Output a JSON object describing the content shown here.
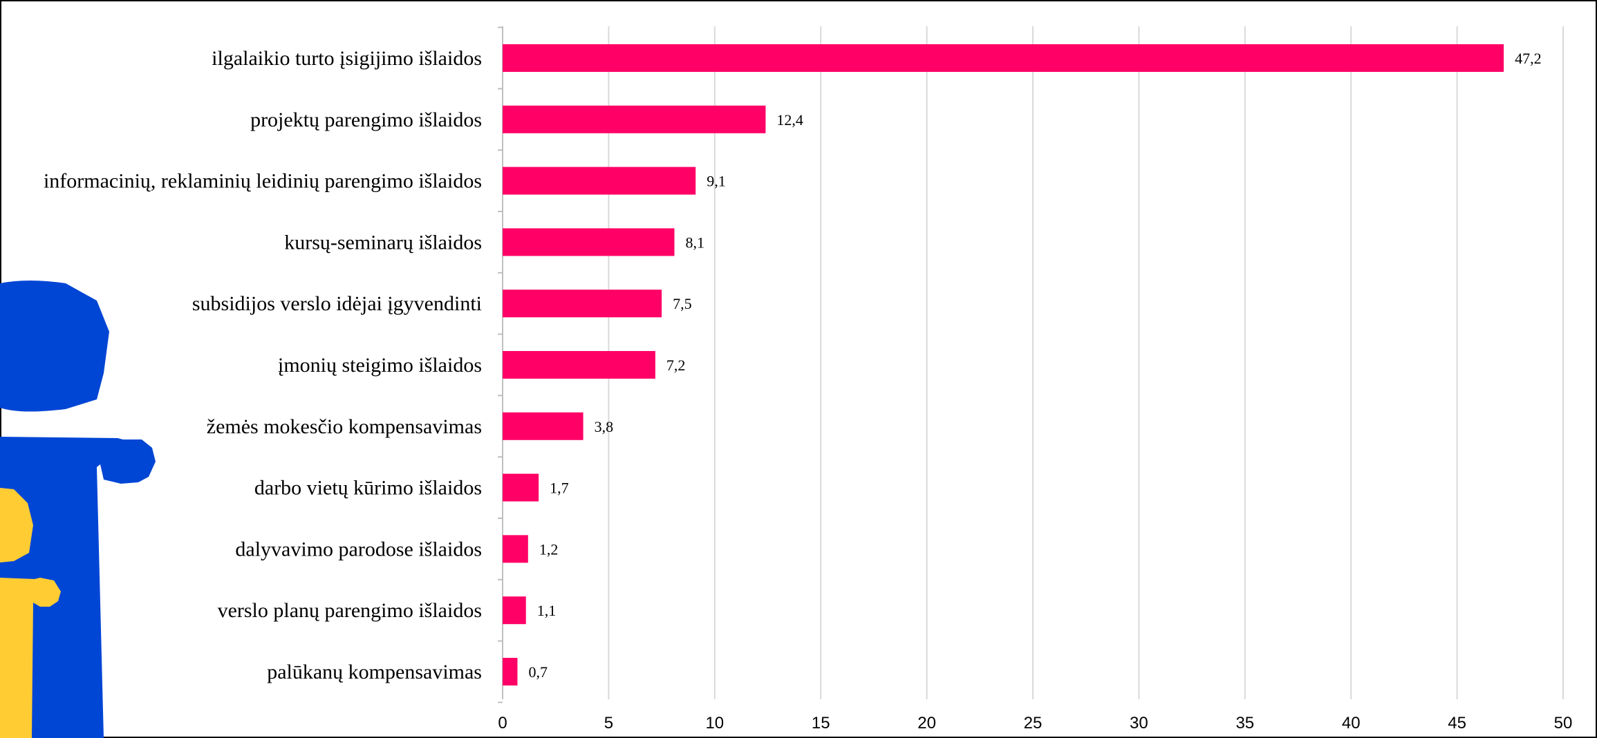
{
  "chart_data": {
    "type": "bar",
    "orientation": "horizontal",
    "categories": [
      "ilgalaikio turto įsigijimo išlaidos",
      "projektų parengimo išlaidos",
      "informacinių, reklaminių leidinių parengimo išlaidos",
      "kursų-seminarų išlaidos",
      "subsidijos verslo idėjai įgyvendinti",
      "įmonių steigimo išlaidos",
      "žemės mokesčio kompensavimas",
      "darbo vietų kūrimo išlaidos",
      "dalyvavimo parodose išlaidos",
      "verslo planų parengimo išlaidos",
      "palūkanų kompensavimas"
    ],
    "values": [
      47.2,
      12.4,
      9.1,
      8.1,
      7.5,
      7.2,
      3.8,
      1.7,
      1.2,
      1.1,
      0.7
    ],
    "value_labels": [
      "47,2",
      "12,4",
      "9,1",
      "8,1",
      "7,5",
      "7,2",
      "3,8",
      "1,7",
      "1,2",
      "1,1",
      "0,7"
    ],
    "xlim": [
      0,
      50
    ],
    "x_ticks": [
      "0",
      "5",
      "10",
      "15",
      "20",
      "25",
      "30",
      "35",
      "40",
      "45",
      "50"
    ],
    "grid": "vertical",
    "colors": {
      "bar": "#ff0066",
      "grid": "#d9d9d9",
      "axis": "#bfbfbf"
    }
  },
  "decoration": {
    "description_icon": "info-figure-illustration",
    "colors": {
      "blue": "#0046d5",
      "yellow": "#ffcc33"
    }
  }
}
